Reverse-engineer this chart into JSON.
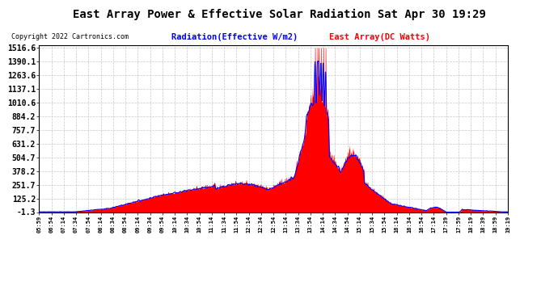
{
  "title": "East Array Power & Effective Solar Radiation Sat Apr 30 19:29",
  "copyright": "Copyright 2022 Cartronics.com",
  "legend_radiation": "Radiation(Effective W/m2)",
  "legend_east": "East Array(DC Watts)",
  "yticks": [
    -1.3,
    125.2,
    251.7,
    378.2,
    504.7,
    631.2,
    757.7,
    884.2,
    1010.6,
    1137.1,
    1263.6,
    1390.1,
    1516.6
  ],
  "xtick_labels_display": [
    "05:59",
    "06:54",
    "07:14",
    "07:34",
    "07:54",
    "08:14",
    "08:34",
    "08:54",
    "09:14",
    "09:34",
    "09:54",
    "10:14",
    "10:34",
    "10:54",
    "11:14",
    "11:34",
    "11:54",
    "12:14",
    "12:34",
    "12:54",
    "13:14",
    "13:34",
    "13:54",
    "14:14",
    "14:34",
    "14:54",
    "15:14",
    "15:34",
    "15:54",
    "16:14",
    "16:34",
    "16:54",
    "17:14",
    "17:39",
    "17:59",
    "18:19",
    "18:39",
    "18:59",
    "19:19"
  ],
  "background_color": "#ffffff",
  "plot_bg_color": "#ffffff",
  "grid_color": "#bbbbbb",
  "title_color": "#000000",
  "radiation_color": "#0000ff",
  "east_array_color": "#ff0000",
  "ymin": -1.3,
  "ymax": 1516.6,
  "n_points": 2000
}
